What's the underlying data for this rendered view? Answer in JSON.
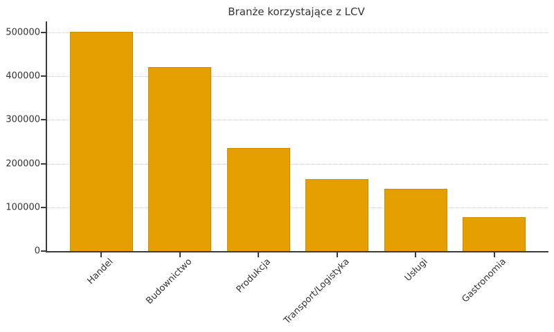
{
  "chart_data": {
    "type": "bar",
    "title": "Branże korzystające z LCV",
    "categories": [
      "Handel",
      "Budownictwo",
      "Produkcja",
      "Transport/Logistyka",
      "Usługi",
      "Gastronomia"
    ],
    "values": [
      502000,
      420000,
      235000,
      165000,
      142000,
      77000
    ],
    "xlabel": "",
    "ylabel": "",
    "ylim": [
      0,
      525000
    ],
    "yticks": [
      0,
      100000,
      200000,
      300000,
      400000,
      500000
    ],
    "ytick_labels": [
      "0",
      "100000",
      "200000",
      "300000",
      "400000",
      "500000"
    ],
    "xtick_rotation_deg": 45,
    "legend": null,
    "grid": "horizontal-dotted",
    "colors": {
      "bar_fill": "#E69F00",
      "bar_edge": "#CD8C00",
      "gridline": "#cfcfcf",
      "spine": "#3a3a3a",
      "text": "#333333",
      "background": "#ffffff"
    }
  }
}
